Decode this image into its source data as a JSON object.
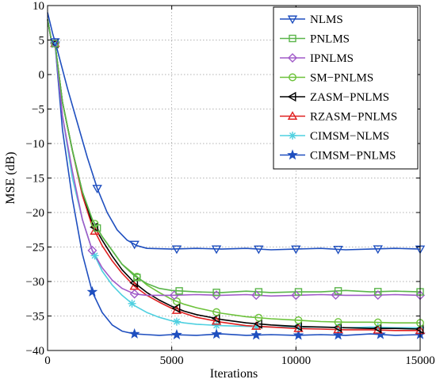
{
  "chart_data": {
    "type": "line",
    "xlabel": "Iterations",
    "ylabel": "MSE (dB)",
    "xlim": [
      0,
      15000
    ],
    "ylim": [
      -40,
      10
    ],
    "xticks": [
      0,
      5000,
      10000,
      15000
    ],
    "xtick_labels": [
      "0",
      "5000",
      "10000",
      "15000"
    ],
    "yticks": [
      10,
      5,
      0,
      -5,
      -10,
      -15,
      -20,
      -25,
      -30,
      -35,
      -40
    ],
    "ytick_labels": [
      "10",
      "5",
      "0",
      "−5",
      "−10",
      "−15",
      "−20",
      "−25",
      "−30",
      "−35",
      "−40"
    ],
    "grid": true,
    "legend_position": "top-right",
    "series": [
      {
        "name": "NLMS",
        "color": "#1f4fbf",
        "marker": "triangle-down",
        "x": [
          0,
          200,
          400,
          800,
          1200,
          1600,
          2000,
          2400,
          2800,
          3200,
          3600,
          4000,
          5000,
          6000,
          7000,
          8000,
          9000,
          10000,
          11000,
          12000,
          13000,
          14000,
          15000
        ],
        "y": [
          9,
          6,
          3.5,
          -2,
          -7,
          -12,
          -16.5,
          -20,
          -22.5,
          -24,
          -24.8,
          -25.2,
          -25.3,
          -25.2,
          -25.3,
          -25.2,
          -25.4,
          -25.3,
          -25.2,
          -25.4,
          -25.3,
          -25.2,
          -25.3
        ],
        "markers_x": [
          300,
          2000,
          3500,
          5200,
          6800,
          8500,
          10000,
          11700,
          13300,
          15000
        ]
      },
      {
        "name": "PNLMS",
        "color": "#5ab54a",
        "marker": "square",
        "x": [
          0,
          150,
          300,
          600,
          1000,
          1400,
          1800,
          2200,
          2600,
          3000,
          3500,
          4000,
          4500,
          5000,
          6000,
          7000,
          8000,
          9000,
          10000,
          11000,
          12000,
          13000,
          14000,
          15000
        ],
        "y": [
          8,
          5,
          4.5,
          -4,
          -11,
          -17,
          -21,
          -23.5,
          -25.5,
          -27.5,
          -29.2,
          -30.3,
          -31,
          -31.3,
          -31.5,
          -31.6,
          -31.4,
          -31.6,
          -31.5,
          -31.5,
          -31.3,
          -31.5,
          -31.4,
          -31.5
        ],
        "markers_x": [
          300,
          2000,
          3600,
          5300,
          6800,
          8500,
          10100,
          11700,
          13300,
          15000
        ]
      },
      {
        "name": "IPNLMS",
        "color": "#a05ac8",
        "marker": "diamond",
        "x": [
          0,
          150,
          300,
          600,
          1000,
          1400,
          1800,
          2200,
          2600,
          3000,
          3500,
          4000,
          5000,
          6000,
          7000,
          8000,
          9000,
          10000,
          11000,
          12000,
          13000,
          14000,
          15000
        ],
        "y": [
          8,
          5,
          4.5,
          -6,
          -14,
          -21,
          -25.5,
          -28,
          -29.8,
          -31,
          -31.8,
          -32,
          -32,
          -31.9,
          -32,
          -31.9,
          -32.1,
          -32,
          -31.9,
          -32,
          -32,
          -31.9,
          -32
        ],
        "markers_x": [
          300,
          1800,
          3500,
          5100,
          6800,
          8400,
          10000,
          11600,
          13300,
          15000
        ]
      },
      {
        "name": "SM−PNLMS",
        "color": "#6cc23a",
        "marker": "circle",
        "x": [
          0,
          150,
          300,
          600,
          1000,
          1400,
          1800,
          2200,
          2600,
          3000,
          3500,
          4000,
          4500,
          5000,
          5500,
          6000,
          7000,
          8000,
          9000,
          10000,
          11000,
          12000,
          13000,
          14000,
          15000
        ],
        "y": [
          8,
          5,
          4.5,
          -4,
          -11,
          -17,
          -21,
          -23.5,
          -25.5,
          -27.5,
          -29,
          -30.5,
          -31.6,
          -32.6,
          -33.3,
          -33.8,
          -34.6,
          -35.1,
          -35.4,
          -35.6,
          -35.8,
          -35.9,
          -35.9,
          -36,
          -36
        ],
        "markers_x": [
          300,
          1900,
          3600,
          5200,
          6800,
          8500,
          10100,
          11700,
          13300,
          15000
        ]
      },
      {
        "name": "ZASM−PNLMS",
        "color": "#000000",
        "marker": "triangle-left",
        "x": [
          0,
          150,
          300,
          600,
          1000,
          1400,
          1800,
          2200,
          2600,
          3000,
          3500,
          4000,
          4500,
          5000,
          5500,
          6000,
          7000,
          8000,
          9000,
          10000,
          11000,
          12000,
          13000,
          14000,
          15000
        ],
        "y": [
          8,
          5,
          4.5,
          -4,
          -11,
          -17,
          -21.5,
          -24,
          -26.3,
          -28.3,
          -30.2,
          -31.6,
          -32.7,
          -33.6,
          -34.3,
          -34.8,
          -35.5,
          -36,
          -36.3,
          -36.5,
          -36.6,
          -36.7,
          -36.8,
          -36.8,
          -36.9
        ],
        "markers_x": [
          300,
          1900,
          3500,
          5200,
          6800,
          8500,
          10100,
          11700,
          13300,
          15000
        ]
      },
      {
        "name": "RZASM−PNLMS",
        "color": "#e02020",
        "marker": "triangle-up",
        "x": [
          0,
          150,
          300,
          600,
          1000,
          1400,
          1800,
          2200,
          2600,
          3000,
          3500,
          4000,
          4500,
          5000,
          5500,
          6000,
          7000,
          8000,
          9000,
          10000,
          11000,
          12000,
          13000,
          14000,
          15000
        ],
        "y": [
          8,
          5,
          4.5,
          -4,
          -11,
          -17.5,
          -22,
          -24.8,
          -27,
          -28.8,
          -30.7,
          -32,
          -33,
          -33.9,
          -34.6,
          -35.2,
          -35.9,
          -36.4,
          -36.6,
          -36.8,
          -36.9,
          -37,
          -37,
          -37.1,
          -37.1
        ],
        "markers_x": [
          300,
          1900,
          3500,
          5200,
          6800,
          8400,
          10100,
          11700,
          13300,
          15000
        ]
      },
      {
        "name": "CIMSM−NLMS",
        "color": "#4fd0e0",
        "marker": "asterisk",
        "x": [
          0,
          150,
          300,
          600,
          1000,
          1400,
          1800,
          2200,
          2600,
          3000,
          3500,
          4000,
          4500,
          5000,
          5500,
          6000,
          7000,
          8000,
          9000,
          10000,
          11000,
          12000,
          13000,
          14000,
          15000
        ],
        "y": [
          8,
          5,
          4.5,
          -6,
          -15,
          -21,
          -25.5,
          -28.5,
          -30.5,
          -32,
          -33.5,
          -34.5,
          -35.2,
          -35.7,
          -36,
          -36.2,
          -36.4,
          -36.5,
          -36.6,
          -36.6,
          -36.6,
          -36.7,
          -36.6,
          -36.7,
          -36.7
        ],
        "markers_x": [
          300,
          1900,
          3400,
          5200,
          6800,
          8400,
          10100,
          11700,
          13300,
          15000
        ]
      },
      {
        "name": "CIMSM−PNLMS",
        "color": "#1f4fbf",
        "marker": "star",
        "x": [
          0,
          150,
          300,
          600,
          1000,
          1400,
          1800,
          2200,
          2600,
          3000,
          3500,
          4000,
          4500,
          5000,
          6000,
          7000,
          8000,
          9000,
          10000,
          11000,
          12000,
          13000,
          14000,
          15000
        ],
        "y": [
          8,
          5,
          4.5,
          -8,
          -18,
          -26,
          -31.5,
          -34.5,
          -36.3,
          -37.2,
          -37.6,
          -37.7,
          -37.8,
          -37.7,
          -37.8,
          -37.6,
          -37.8,
          -37.7,
          -37.8,
          -37.7,
          -37.8,
          -37.6,
          -37.8,
          -37.7
        ],
        "markers_x": [
          300,
          1800,
          3500,
          5200,
          6800,
          8400,
          10100,
          11700,
          13400,
          15000
        ]
      }
    ]
  }
}
